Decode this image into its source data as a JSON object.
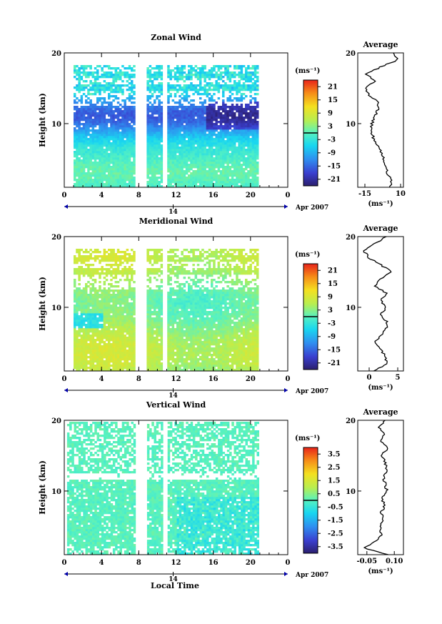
{
  "common": {
    "x_ticks": [
      "0",
      "4",
      "8",
      "12",
      "16",
      "20",
      "0"
    ],
    "date_label": "14",
    "month_label": "Apr 2007",
    "y_label": "Height (km)",
    "y_ticks": [
      "10",
      "20"
    ],
    "cbar_unit": "(ms⁻¹)",
    "profile_unit": "(ms⁻¹)",
    "profile_title": "Average",
    "x_label": "Local Time"
  },
  "chart_data": [
    {
      "type": "heatmap",
      "title": "Zonal Wind",
      "x_range": [
        0,
        24
      ],
      "y_range": [
        1,
        20
      ],
      "colorbar_ticks": [
        "21",
        "15",
        "9",
        "3",
        "-3",
        "-9",
        "-15",
        "-21"
      ],
      "colorbar_range": [
        -24,
        24
      ],
      "gaps_hours": [
        [
          7.5,
          8.7
        ],
        [
          10.4,
          10.9
        ]
      ],
      "data_extent_hours": [
        1,
        20.8
      ],
      "data_top_km": 18,
      "profile": {
        "x_ticks": [
          "-15",
          "10"
        ],
        "x_range": [
          -20,
          12
        ],
        "heights_km": [
          1,
          2,
          3,
          4,
          5,
          6,
          7,
          8,
          9,
          10,
          11,
          12,
          13,
          14,
          15,
          16,
          17,
          18,
          19,
          20
        ],
        "values": [
          3,
          3,
          1,
          0,
          -2,
          -4,
          -6,
          -9,
          -11,
          -10,
          -8,
          -6,
          -5,
          -12,
          -15,
          -8,
          -14,
          -4,
          8,
          5
        ]
      }
    },
    {
      "type": "heatmap",
      "title": "Meridional Wind",
      "x_range": [
        0,
        24
      ],
      "y_range": [
        1,
        20
      ],
      "colorbar_ticks": [
        "21",
        "15",
        "9",
        "3",
        "-3",
        "-9",
        "-15",
        "-21"
      ],
      "colorbar_range": [
        -24,
        24
      ],
      "gaps_hours": [
        [
          7.5,
          8.7
        ],
        [
          10.4,
          10.9
        ]
      ],
      "data_extent_hours": [
        1,
        20.8
      ],
      "data_top_km": 18,
      "profile": {
        "x_ticks": [
          "0",
          "5"
        ],
        "x_range": [
          -2,
          6
        ],
        "heights_km": [
          1,
          2,
          3,
          4,
          5,
          6,
          7,
          8,
          9,
          10,
          11,
          12,
          13,
          14,
          15,
          16,
          17,
          18,
          19,
          20
        ],
        "values": [
          1,
          3,
          3,
          2,
          1,
          2,
          3,
          3,
          2,
          3,
          2,
          3,
          1,
          2,
          4,
          2,
          0,
          -1,
          1,
          3
        ]
      }
    },
    {
      "type": "heatmap",
      "title": "Vertical Wind",
      "x_range": [
        0,
        24
      ],
      "y_range": [
        1,
        20
      ],
      "colorbar_ticks": [
        "3.5",
        "2.5",
        "1.5",
        "0.5",
        "-0.5",
        "-1.5",
        "-2.5",
        "-3.5"
      ],
      "colorbar_range": [
        -4,
        4
      ],
      "gaps_hours": [
        [
          7.5,
          8.7
        ],
        [
          10.4,
          10.9
        ]
      ],
      "data_extent_hours": [
        0.3,
        20.8
      ],
      "data_top_km": 19.5,
      "profile": {
        "x_ticks": [
          "-0.05",
          "0.10"
        ],
        "x_range": [
          -0.1,
          0.15
        ],
        "heights_km": [
          1,
          2,
          3,
          4,
          5,
          6,
          7,
          8,
          9,
          10,
          11,
          12,
          13,
          14,
          15,
          16,
          17,
          18,
          19,
          20
        ],
        "values": [
          0.06,
          -0.07,
          0.01,
          0.03,
          0.02,
          0.04,
          0.03,
          0.05,
          0.03,
          0.06,
          0.05,
          0.04,
          0.06,
          0.05,
          0.03,
          0.06,
          0.03,
          0.04,
          0.02,
          0.05
        ]
      }
    }
  ]
}
